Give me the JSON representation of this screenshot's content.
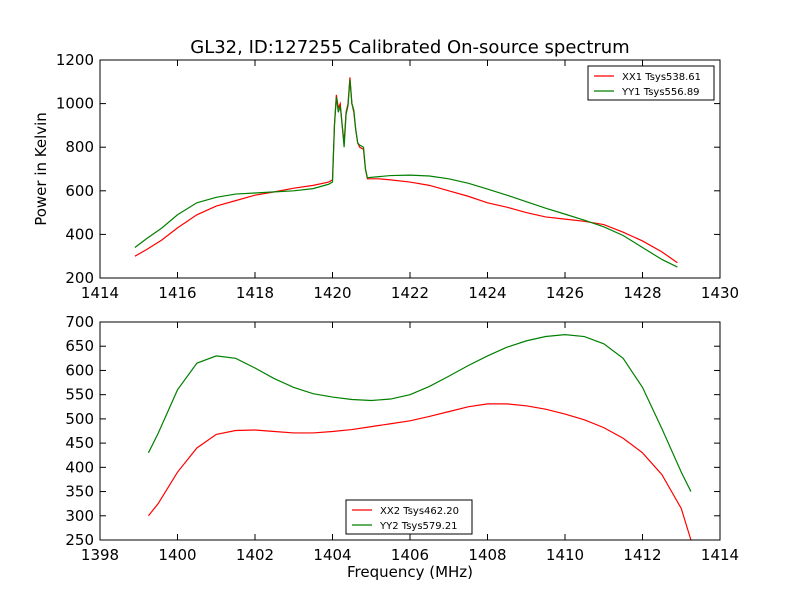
{
  "figure": {
    "title": "GL32, ID:127255 Calibrated On-source spectrum"
  },
  "chart_data": [
    {
      "type": "line",
      "title": "GL32, ID:127255 Calibrated On-source spectrum",
      "xlabel": "",
      "ylabel": "Power in Kelvin",
      "xlim": [
        1414,
        1430
      ],
      "ylim": [
        200,
        1200
      ],
      "xticks": [
        "1414",
        "1416",
        "1418",
        "1420",
        "1422",
        "1424",
        "1426",
        "1428",
        "1430"
      ],
      "yticks": [
        "200",
        "400",
        "600",
        "800",
        "1000",
        "1200"
      ],
      "legend_position": "top-right",
      "series": [
        {
          "name": "XX1 Tsys538.61",
          "color": "#ff0000",
          "points": [
            [
              1414.9,
              300
            ],
            [
              1415.2,
              330
            ],
            [
              1415.6,
              375
            ],
            [
              1416.0,
              430
            ],
            [
              1416.5,
              490
            ],
            [
              1417.0,
              530
            ],
            [
              1417.5,
              555
            ],
            [
              1418.0,
              580
            ],
            [
              1418.5,
              595
            ],
            [
              1419.0,
              612
            ],
            [
              1419.5,
              625
            ],
            [
              1419.9,
              640
            ],
            [
              1420.0,
              650
            ],
            [
              1420.05,
              900
            ],
            [
              1420.1,
              1040
            ],
            [
              1420.15,
              980
            ],
            [
              1420.2,
              1000
            ],
            [
              1420.25,
              900
            ],
            [
              1420.3,
              820
            ],
            [
              1420.35,
              960
            ],
            [
              1420.4,
              1000
            ],
            [
              1420.45,
              1120
            ],
            [
              1420.5,
              1000
            ],
            [
              1420.55,
              960
            ],
            [
              1420.6,
              880
            ],
            [
              1420.65,
              820
            ],
            [
              1420.7,
              800
            ],
            [
              1420.8,
              790
            ],
            [
              1420.85,
              700
            ],
            [
              1420.9,
              655
            ],
            [
              1421.2,
              655
            ],
            [
              1421.5,
              650
            ],
            [
              1422.0,
              640
            ],
            [
              1422.5,
              625
            ],
            [
              1423.0,
              600
            ],
            [
              1423.5,
              575
            ],
            [
              1424.0,
              545
            ],
            [
              1424.5,
              525
            ],
            [
              1425.0,
              500
            ],
            [
              1425.5,
              480
            ],
            [
              1426.0,
              470
            ],
            [
              1426.5,
              460
            ],
            [
              1427.0,
              445
            ],
            [
              1427.5,
              410
            ],
            [
              1428.0,
              370
            ],
            [
              1428.5,
              320
            ],
            [
              1428.9,
              270
            ]
          ]
        },
        {
          "name": "YY1 Tsys556.89",
          "color": "#008000",
          "points": [
            [
              1414.9,
              340
            ],
            [
              1415.2,
              380
            ],
            [
              1415.6,
              430
            ],
            [
              1416.0,
              490
            ],
            [
              1416.5,
              545
            ],
            [
              1417.0,
              570
            ],
            [
              1417.5,
              585
            ],
            [
              1418.0,
              590
            ],
            [
              1418.5,
              595
            ],
            [
              1419.0,
              600
            ],
            [
              1419.5,
              610
            ],
            [
              1419.9,
              630
            ],
            [
              1420.0,
              640
            ],
            [
              1420.05,
              900
            ],
            [
              1420.1,
              1030
            ],
            [
              1420.15,
              960
            ],
            [
              1420.2,
              990
            ],
            [
              1420.25,
              900
            ],
            [
              1420.3,
              800
            ],
            [
              1420.35,
              950
            ],
            [
              1420.4,
              990
            ],
            [
              1420.45,
              1110
            ],
            [
              1420.5,
              1000
            ],
            [
              1420.55,
              970
            ],
            [
              1420.6,
              880
            ],
            [
              1420.65,
              820
            ],
            [
              1420.7,
              810
            ],
            [
              1420.8,
              800
            ],
            [
              1420.85,
              700
            ],
            [
              1420.9,
              660
            ],
            [
              1421.2,
              665
            ],
            [
              1421.5,
              670
            ],
            [
              1422.0,
              672
            ],
            [
              1422.5,
              668
            ],
            [
              1423.0,
              655
            ],
            [
              1423.5,
              635
            ],
            [
              1424.0,
              608
            ],
            [
              1424.5,
              580
            ],
            [
              1425.0,
              550
            ],
            [
              1425.5,
              520
            ],
            [
              1426.0,
              493
            ],
            [
              1426.5,
              465
            ],
            [
              1427.0,
              435
            ],
            [
              1427.5,
              395
            ],
            [
              1428.0,
              340
            ],
            [
              1428.5,
              285
            ],
            [
              1428.9,
              250
            ]
          ]
        }
      ]
    },
    {
      "type": "line",
      "title": "",
      "xlabel": "Frequency (MHz)",
      "ylabel": "",
      "xlim": [
        1398,
        1414
      ],
      "ylim": [
        250,
        700
      ],
      "xticks": [
        "1398",
        "1400",
        "1402",
        "1404",
        "1406",
        "1408",
        "1410",
        "1412",
        "1414"
      ],
      "yticks": [
        "250",
        "300",
        "350",
        "400",
        "450",
        "500",
        "550",
        "600",
        "650",
        "700"
      ],
      "legend_position": "bottom-center",
      "series": [
        {
          "name": "XX2 Tsys462.20",
          "color": "#ff0000",
          "points": [
            [
              1399.25,
              300
            ],
            [
              1399.5,
              325
            ],
            [
              1400.0,
              390
            ],
            [
              1400.5,
              440
            ],
            [
              1401.0,
              468
            ],
            [
              1401.5,
              476
            ],
            [
              1402.0,
              477
            ],
            [
              1402.5,
              474
            ],
            [
              1403.0,
              471
            ],
            [
              1403.5,
              471
            ],
            [
              1404.0,
              474
            ],
            [
              1404.5,
              478
            ],
            [
              1405.0,
              484
            ],
            [
              1405.5,
              490
            ],
            [
              1406.0,
              496
            ],
            [
              1406.5,
              505
            ],
            [
              1407.0,
              515
            ],
            [
              1407.5,
              525
            ],
            [
              1408.0,
              531
            ],
            [
              1408.5,
              531
            ],
            [
              1409.0,
              527
            ],
            [
              1409.5,
              520
            ],
            [
              1410.0,
              510
            ],
            [
              1410.5,
              498
            ],
            [
              1411.0,
              482
            ],
            [
              1411.5,
              460
            ],
            [
              1412.0,
              430
            ],
            [
              1412.5,
              385
            ],
            [
              1413.0,
              315
            ],
            [
              1413.25,
              250
            ]
          ]
        },
        {
          "name": "YY2 Tsys579.21",
          "color": "#008000",
          "points": [
            [
              1399.25,
              430
            ],
            [
              1399.5,
              470
            ],
            [
              1400.0,
              560
            ],
            [
              1400.5,
              615
            ],
            [
              1401.0,
              630
            ],
            [
              1401.5,
              625
            ],
            [
              1402.0,
              605
            ],
            [
              1402.5,
              583
            ],
            [
              1403.0,
              565
            ],
            [
              1403.5,
              552
            ],
            [
              1404.0,
              545
            ],
            [
              1404.5,
              540
            ],
            [
              1405.0,
              538
            ],
            [
              1405.5,
              541
            ],
            [
              1406.0,
              550
            ],
            [
              1406.5,
              567
            ],
            [
              1407.0,
              588
            ],
            [
              1407.5,
              610
            ],
            [
              1408.0,
              630
            ],
            [
              1408.5,
              648
            ],
            [
              1409.0,
              661
            ],
            [
              1409.5,
              670
            ],
            [
              1410.0,
              674
            ],
            [
              1410.5,
              670
            ],
            [
              1411.0,
              655
            ],
            [
              1411.5,
              625
            ],
            [
              1412.0,
              565
            ],
            [
              1412.5,
              480
            ],
            [
              1413.0,
              390
            ],
            [
              1413.25,
              350
            ]
          ]
        }
      ]
    }
  ]
}
